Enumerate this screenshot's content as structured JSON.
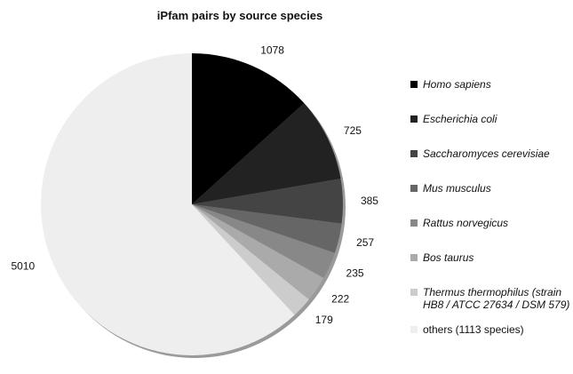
{
  "chart_data": {
    "type": "pie",
    "title": "iPfam pairs by source species",
    "slices": [
      {
        "label": "Homo sapiens",
        "value": 1078,
        "color": "#000000",
        "italic": true
      },
      {
        "label": "Escherichia coli",
        "value": 725,
        "color": "#222222",
        "italic": true
      },
      {
        "label": "Saccharomyces cerevisiae",
        "value": 385,
        "color": "#444444",
        "italic": true
      },
      {
        "label": "Mus musculus",
        "value": 257,
        "color": "#666666",
        "italic": true
      },
      {
        "label": "Rattus norvegicus",
        "value": 235,
        "color": "#888888",
        "italic": true
      },
      {
        "label": "Bos taurus",
        "value": 222,
        "color": "#aaaaaa",
        "italic": true
      },
      {
        "label": "Thermus thermophilus (strain HB8 / ATCC 27634 / DSM 579)",
        "value": 179,
        "color": "#cccccc",
        "italic": true
      },
      {
        "label": "others (1113 species)",
        "value": 5010,
        "color": "#eeeeee",
        "italic": false
      }
    ],
    "legend_position": "right"
  }
}
